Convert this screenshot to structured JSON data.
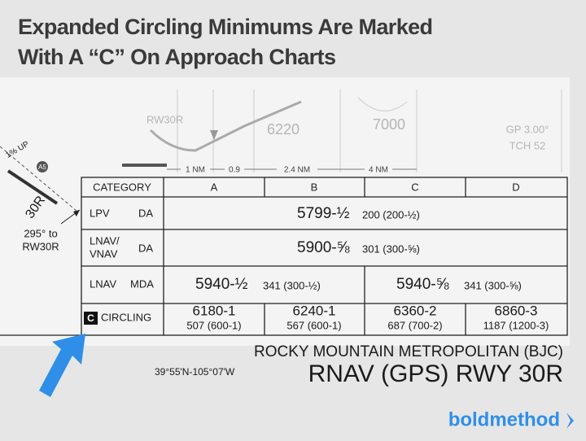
{
  "title": {
    "line1": "Expanded Circling Minimums Are Marked",
    "line2": "With A “C” On Approach Charts"
  },
  "profile": {
    "runway": "RW30R",
    "altitude_1": "6220",
    "altitude_2": "7000",
    "glidepath": "GP 3.00°",
    "tch": "TCH 52",
    "distances": [
      "1 NM",
      "0.9",
      "2.4 NM",
      "4 NM"
    ]
  },
  "plan_view": {
    "climb": "1% UP",
    "runway_label": "30R",
    "course_line1": "295° to",
    "course_line2": "RW30R",
    "fix": "A5"
  },
  "table": {
    "header": [
      "CATEGORY",
      "A",
      "B",
      "C",
      "D"
    ],
    "rows": [
      {
        "label": [
          "LPV"
        ],
        "minimum_type": "DA",
        "cells": [
          {
            "value": "5799-½",
            "detail": "200 (200-½)"
          }
        ]
      },
      {
        "label": [
          "LNAV/",
          "VNAV"
        ],
        "minimum_type": "DA",
        "cells": [
          {
            "value": "5900-⅝",
            "detail": "301 (300-⅝)"
          }
        ]
      },
      {
        "label": [
          "LNAV"
        ],
        "minimum_type": "MDA",
        "cells": [
          {
            "value": "5940-½",
            "detail": "341 (300-½)"
          },
          {
            "value": "5940-⅝",
            "detail": "341 (300-⅝)"
          }
        ]
      },
      {
        "badge": "C",
        "label": [
          "CIRCLING"
        ],
        "cells": [
          {
            "value": "6180-1",
            "detail": "507 (600-1)"
          },
          {
            "value": "6240-1",
            "detail": "567 (600-1)"
          },
          {
            "value": "6360-2",
            "detail": "687 (700-2)"
          },
          {
            "value": "6860-3",
            "detail": "1187 (1200-3)"
          }
        ]
      }
    ]
  },
  "footer": {
    "airport": "ROCKY MOUNTAIN METROPOLITAN (BJC)",
    "coordinates": "39°55'N-105°07'W",
    "procedure": "RNAV (GPS) RWY 30R"
  },
  "logo": "boldmethod"
}
